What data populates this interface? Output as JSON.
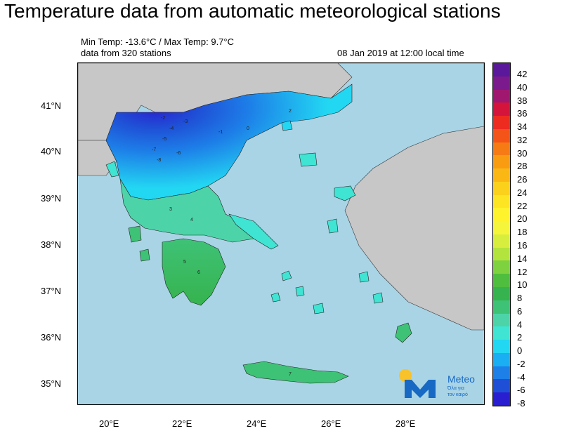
{
  "title": "Temperature data from automatic meteorological stations",
  "header": {
    "min_max": "Min Temp: -13.6°C / Max Temp: 9.7°C",
    "stations": "data from 320 stations",
    "datetime": "08 Jan 2019 at 12:00 local time"
  },
  "axes": {
    "lat_labels": [
      "41°N",
      "40°N",
      "39°N",
      "38°N",
      "37°N",
      "36°N",
      "35°N"
    ],
    "lon_labels": [
      "20°E",
      "22°E",
      "24°E",
      "26°E",
      "28°E"
    ]
  },
  "colorbar": {
    "labels": [
      "42",
      "40",
      "38",
      "36",
      "34",
      "32",
      "30",
      "28",
      "26",
      "24",
      "22",
      "20",
      "18",
      "16",
      "14",
      "12",
      "10",
      "8",
      "6",
      "4",
      "2",
      "0",
      "-2",
      "-4",
      "-6",
      "-8"
    ],
    "colors": [
      "#5a189a",
      "#7b1a8c",
      "#a0176f",
      "#d4143a",
      "#ee2b1f",
      "#f45417",
      "#f77b14",
      "#f99c12",
      "#fbb815",
      "#fcd11b",
      "#fde523",
      "#fef32c",
      "#f5f53c",
      "#d8ee3e",
      "#b3e43d",
      "#7ed23f",
      "#4fbe3e",
      "#36b34e",
      "#3ec276",
      "#4cd4a8",
      "#3fe4d3",
      "#22d7f2",
      "#1aaef3",
      "#1d7fe8",
      "#1f4fd6",
      "#2a1fd0"
    ]
  },
  "logo": {
    "brand": "Meteo",
    "tagline_1": "Όλα για",
    "tagline_2": "τον καιρό"
  },
  "station_values": [
    "-2",
    "-4",
    "-3",
    "-5",
    "-7",
    "-8",
    "-6",
    "-1",
    "0",
    "2",
    "3",
    "4",
    "5",
    "6",
    "7"
  ]
}
